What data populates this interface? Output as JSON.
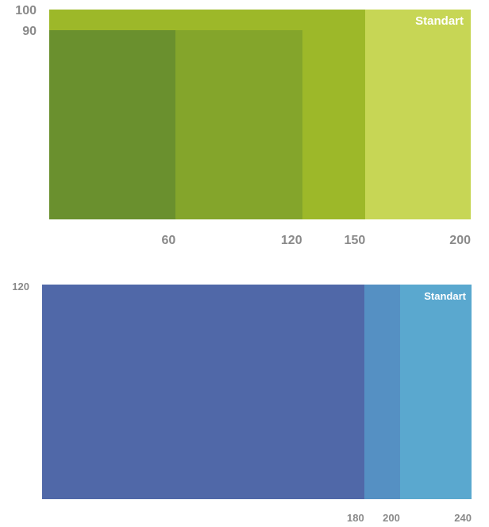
{
  "diagrams": [
    {
      "tag": "Standart",
      "x_max": 200,
      "y_max": 100,
      "x_ticks": [
        "60",
        "120",
        "150",
        "200"
      ],
      "y_ticks": [
        "100",
        "90"
      ],
      "rects": [
        {
          "w": 150,
          "h": 100,
          "color": "#9db829"
        },
        {
          "x0": 150,
          "w": 50,
          "h": 100,
          "color": "#c7d655"
        },
        {
          "w": 60,
          "h": 90,
          "color": "#6a902e"
        },
        {
          "x0": 60,
          "w": 60,
          "h": 90,
          "color": "#84a52b"
        }
      ]
    },
    {
      "tag": "Standart",
      "x_max": 240,
      "y_max": 120,
      "x_ticks": [
        "180",
        "200",
        "240"
      ],
      "y_ticks": [
        "120"
      ],
      "rects": [
        {
          "w": 180,
          "h": 120,
          "color": "#5068a8"
        },
        {
          "x0": 180,
          "w": 20,
          "h": 120,
          "color": "#5590c3"
        },
        {
          "x0": 200,
          "w": 40,
          "h": 120,
          "color": "#5aa8cf"
        }
      ]
    }
  ]
}
